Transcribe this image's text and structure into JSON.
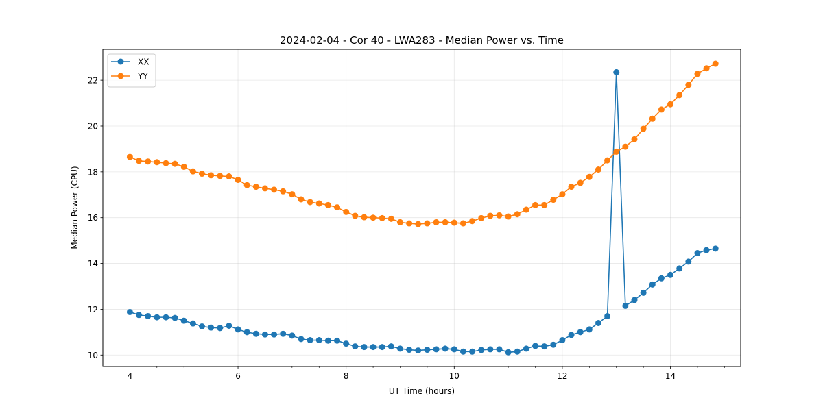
{
  "chart_data": {
    "type": "line",
    "title": "2024-02-04 - Cor 40 - LWA283 - Median Power vs. Time",
    "xlabel": "UT Time (hours)",
    "ylabel": "Median Power (CPU)",
    "xlim": [
      3.5,
      15.3
    ],
    "ylim": [
      9.5,
      23.35
    ],
    "xticks": [
      4,
      6,
      8,
      10,
      12,
      14
    ],
    "yticks": [
      10,
      12,
      14,
      16,
      18,
      20,
      22
    ],
    "grid": true,
    "legend_position": "top-left",
    "x": [
      4.0,
      4.1667,
      4.3333,
      4.5,
      4.6667,
      4.8333,
      5.0,
      5.1667,
      5.3333,
      5.5,
      5.6667,
      5.8333,
      6.0,
      6.1667,
      6.3333,
      6.5,
      6.6667,
      6.8333,
      7.0,
      7.1667,
      7.3333,
      7.5,
      7.6667,
      7.8333,
      8.0,
      8.1667,
      8.3333,
      8.5,
      8.6667,
      8.8333,
      9.0,
      9.1667,
      9.3333,
      9.5,
      9.6667,
      9.8333,
      10.0,
      10.1667,
      10.3333,
      10.5,
      10.6667,
      10.8333,
      11.0,
      11.1667,
      11.3333,
      11.5,
      11.6667,
      11.8333,
      12.0,
      12.1667,
      12.3333,
      12.5,
      12.6667,
      12.8333,
      13.0,
      13.1667,
      13.3333,
      13.5,
      13.6667,
      13.8333,
      14.0,
      14.1667,
      14.3333,
      14.5,
      14.6667,
      14.8333
    ],
    "series": [
      {
        "name": "XX",
        "color": "#1f77b4",
        "values": [
          11.88,
          11.75,
          11.7,
          11.65,
          11.65,
          11.62,
          11.5,
          11.38,
          11.25,
          11.2,
          11.18,
          11.28,
          11.12,
          11.0,
          10.93,
          10.9,
          10.9,
          10.93,
          10.85,
          10.7,
          10.65,
          10.65,
          10.63,
          10.63,
          10.5,
          10.38,
          10.35,
          10.35,
          10.35,
          10.38,
          10.28,
          10.23,
          10.2,
          10.23,
          10.25,
          10.28,
          10.25,
          10.15,
          10.15,
          10.22,
          10.25,
          10.25,
          10.12,
          10.15,
          10.28,
          10.4,
          10.38,
          10.45,
          10.65,
          10.88,
          11.0,
          11.12,
          11.4,
          11.7,
          22.35,
          12.15,
          12.4,
          12.72,
          13.08,
          13.35,
          13.5,
          13.78,
          14.08,
          14.45,
          14.58,
          14.65
        ]
      },
      {
        "name": "YY",
        "color": "#ff7f0e",
        "values": [
          18.65,
          18.48,
          18.45,
          18.42,
          18.38,
          18.35,
          18.22,
          18.02,
          17.92,
          17.85,
          17.82,
          17.8,
          17.65,
          17.42,
          17.35,
          17.28,
          17.22,
          17.15,
          17.02,
          16.8,
          16.68,
          16.62,
          16.55,
          16.45,
          16.25,
          16.08,
          16.02,
          16.0,
          15.98,
          15.95,
          15.8,
          15.75,
          15.72,
          15.75,
          15.8,
          15.8,
          15.78,
          15.75,
          15.85,
          15.98,
          16.08,
          16.1,
          16.05,
          16.15,
          16.35,
          16.55,
          16.55,
          16.78,
          17.02,
          17.35,
          17.52,
          17.78,
          18.1,
          18.5,
          18.88,
          19.1,
          19.42,
          19.88,
          20.32,
          20.72,
          20.95,
          21.35,
          21.8,
          22.28,
          22.52,
          22.72
        ]
      }
    ]
  }
}
